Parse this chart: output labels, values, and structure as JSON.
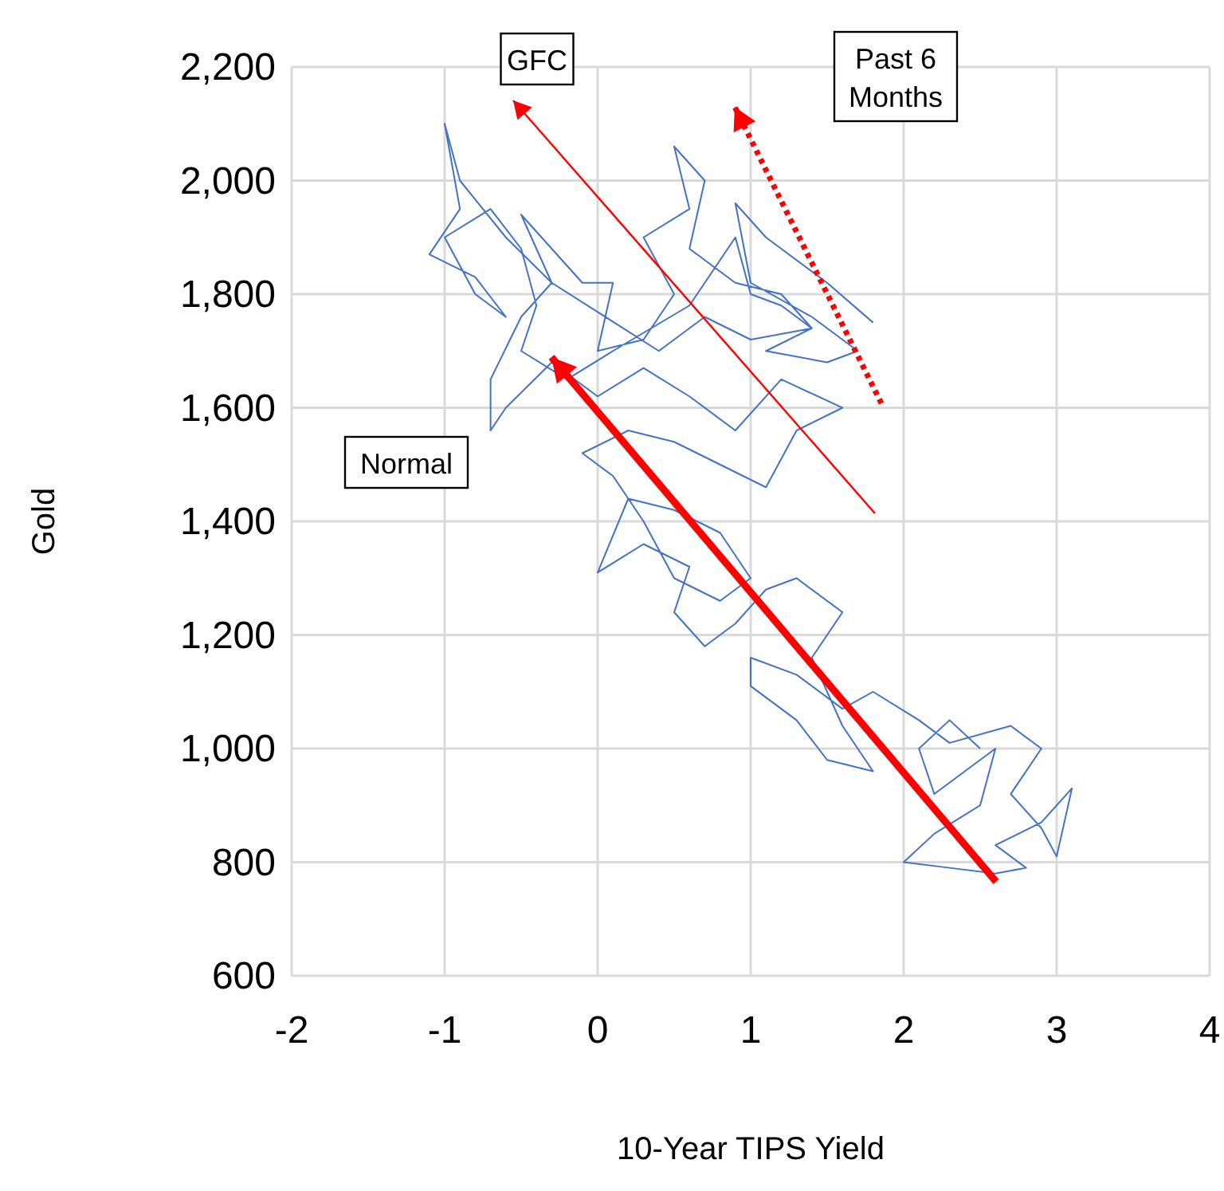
{
  "chart_data": {
    "type": "line",
    "xlabel": "10-Year TIPS Yield",
    "ylabel": "Gold",
    "xlim": [
      -2,
      4
    ],
    "xticks": [
      -2,
      -1,
      0,
      1,
      2,
      3,
      4
    ],
    "ylim": [
      600,
      2200
    ],
    "yticks": [
      {
        "value": 600,
        "label": "600"
      },
      {
        "value": 800,
        "label": "800"
      },
      {
        "value": 1000,
        "label": "1,000"
      },
      {
        "value": 1200,
        "label": "1,200"
      },
      {
        "value": 1400,
        "label": "1,400"
      },
      {
        "value": 1600,
        "label": "1,600"
      },
      {
        "value": 1800,
        "label": "1,800"
      },
      {
        "value": 2000,
        "label": "2,000"
      },
      {
        "value": 2200,
        "label": "2,200"
      }
    ],
    "grid": true,
    "marker": "none",
    "line_style": "solid",
    "annotations": [
      "GFC",
      "Normal",
      "Past 6 Months"
    ],
    "series": [
      {
        "color": "#4472c4",
        "x": [
          2.5,
          2.3,
          2.1,
          2.2,
          2.4,
          2.6,
          2.5,
          2.2,
          2.0,
          2.3,
          2.6,
          2.8,
          2.6,
          2.9,
          3.1,
          3.0,
          2.9,
          2.7,
          2.9,
          2.7,
          2.3,
          2.1,
          1.8,
          1.6,
          1.3,
          1.0,
          1.0,
          1.3,
          1.5,
          1.8,
          1.6,
          1.4,
          1.6,
          1.3,
          1.1,
          0.9,
          0.7,
          0.5,
          0.6,
          0.3,
          0.0,
          0.2,
          0.5,
          0.8,
          1.0,
          0.8,
          0.5,
          0.3,
          0.1,
          -0.1,
          0.2,
          0.5,
          0.8,
          1.1,
          1.3,
          1.6,
          1.2,
          0.9,
          0.6,
          0.3,
          0.0,
          -0.3,
          -0.6,
          -0.7,
          -0.7,
          -0.5,
          -0.3,
          -0.5,
          -0.3,
          -0.1,
          0.1,
          0.0,
          0.3,
          0.5,
          0.3,
          0.6,
          0.5,
          0.7,
          0.6,
          0.9,
          1.2,
          1.4,
          1.0,
          0.7,
          0.4,
          -0.3,
          -0.6,
          -0.9,
          -1.0,
          -0.9,
          -1.1,
          -0.8,
          -0.6,
          -0.8,
          -1.0,
          -0.7,
          -0.5,
          -0.4,
          -0.5,
          -0.2,
          0.1,
          0.6,
          0.9,
          1.0,
          1.2,
          1.4,
          1.1,
          1.5,
          1.7,
          1.4,
          1.0,
          0.9,
          1.1,
          1.5,
          1.8
        ],
        "values": [
          1000,
          1050,
          1000,
          920,
          960,
          1000,
          900,
          850,
          800,
          790,
          780,
          790,
          830,
          870,
          930,
          810,
          860,
          920,
          1000,
          1040,
          1010,
          1050,
          1100,
          1070,
          1130,
          1160,
          1110,
          1050,
          980,
          960,
          1040,
          1160,
          1240,
          1300,
          1280,
          1220,
          1180,
          1240,
          1320,
          1360,
          1310,
          1440,
          1420,
          1380,
          1300,
          1260,
          1300,
          1400,
          1480,
          1520,
          1560,
          1540,
          1500,
          1460,
          1560,
          1600,
          1650,
          1560,
          1620,
          1670,
          1620,
          1680,
          1600,
          1560,
          1650,
          1760,
          1820,
          1940,
          1880,
          1820,
          1820,
          1700,
          1720,
          1800,
          1900,
          1950,
          2060,
          2000,
          1880,
          1820,
          1800,
          1740,
          1720,
          1760,
          1700,
          1820,
          1900,
          2000,
          2100,
          1950,
          1870,
          1830,
          1760,
          1800,
          1900,
          1950,
          1880,
          1780,
          1700,
          1650,
          1700,
          1780,
          1900,
          1800,
          1780,
          1740,
          1700,
          1680,
          1700,
          1760,
          1820,
          1960,
          1900,
          1820,
          1750
        ]
      }
    ]
  }
}
